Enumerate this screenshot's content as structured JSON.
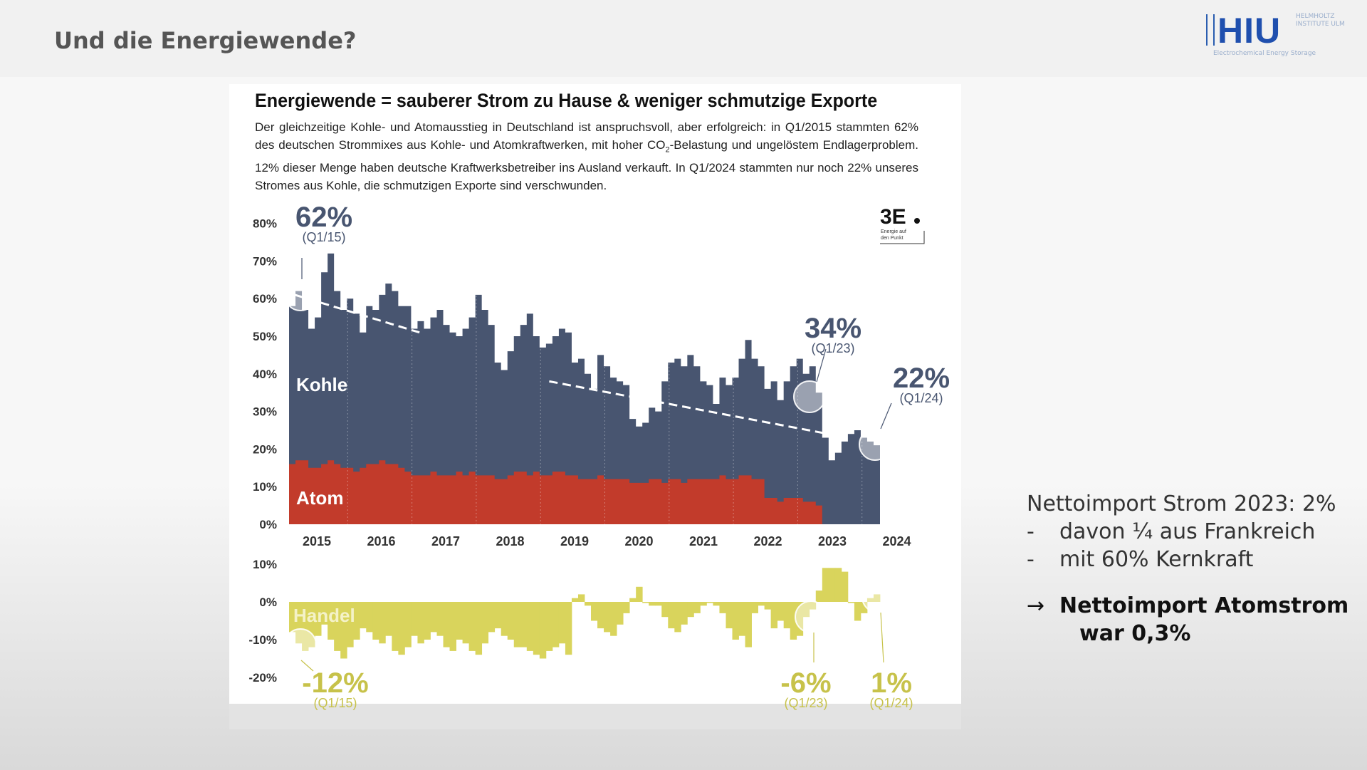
{
  "slide": {
    "title": "Und die Energiewende?",
    "logo_text": "HIU",
    "logo_side": "HELMHOLTZ INSTITUTE ULM",
    "logo_sub": "Electrochemical Energy Storage"
  },
  "figure": {
    "headline": "Energiewende = sauberer Strom zu Hause & weniger schmutzige Exporte",
    "intro_1": "Der gleichzeitige Kohle- und Atomausstieg in Deutschland ist anspruchsvoll, aber erfolgreich: in Q1/2015 stammten 62% des deutschen Strommixes aus Kohle- und Atomkraftwerken, mit hoher CO",
    "intro_sub": "2",
    "intro_2": "-Belastung und ungelöstem Endlagerproblem. 12% dieser Menge haben deutsche Kraftwerksbetreiber ins Ausland verkauft. In Q1/2024 stammten nur noch 22% unseres Stromes aus Kohle, die schmutzigen Exporte sind verschwunden.",
    "badge_text": "3E",
    "badge_sub_1": "Energie auf",
    "badge_sub_2": "den Punkt"
  },
  "colors": {
    "kohle": "#485570",
    "atom": "#c23b2b",
    "handel": "#d9d45c",
    "trend": "#ffffff"
  },
  "chart_data": [
    {
      "type": "area",
      "x_labels": [
        "2015",
        "2016",
        "2017",
        "2018",
        "2019",
        "2020",
        "2021",
        "2022",
        "2023",
        "2024"
      ],
      "y_ticks": [
        "0%",
        "10%",
        "20%",
        "30%",
        "40%",
        "50%",
        "60%",
        "70%",
        "80%"
      ],
      "ylim": [
        0,
        80
      ],
      "series": [
        {
          "name": "Kohle",
          "values": [
            58,
            62,
            57,
            52,
            55,
            67,
            72,
            62,
            57,
            60,
            56,
            51,
            58,
            57,
            61,
            64,
            62,
            58,
            58,
            52,
            54,
            52,
            55,
            57,
            53,
            51,
            50,
            52,
            55,
            61,
            57,
            53,
            43,
            41,
            46,
            50,
            53,
            56,
            50,
            47,
            48,
            50,
            52,
            51,
            43,
            44,
            40,
            36,
            45,
            42,
            39,
            38,
            37,
            28,
            26,
            27,
            31,
            30,
            38,
            43,
            44,
            42,
            45,
            42,
            38,
            37,
            32,
            39,
            37,
            39,
            44,
            49,
            44,
            42,
            36,
            38,
            33,
            38,
            42,
            44,
            40,
            42,
            35,
            23,
            17,
            19,
            22,
            24,
            25,
            23,
            22,
            21
          ]
        },
        {
          "name": "Atom",
          "values": [
            16,
            17,
            17,
            15,
            15,
            16,
            17,
            16,
            15,
            15,
            14,
            15,
            16,
            16,
            17,
            16,
            16,
            15,
            14,
            13,
            13,
            13,
            14,
            13,
            13,
            13,
            14,
            13,
            14,
            13,
            13,
            13,
            12,
            12,
            13,
            14,
            14,
            13,
            14,
            13,
            13,
            14,
            14,
            13,
            13,
            12,
            12,
            12,
            13,
            12,
            12,
            12,
            12,
            11,
            11,
            11,
            12,
            12,
            11,
            12,
            12,
            11,
            12,
            12,
            12,
            12,
            12,
            13,
            12,
            12,
            13,
            13,
            12,
            12,
            7,
            7,
            6,
            7,
            7,
            7,
            6,
            6,
            5,
            0,
            0,
            0,
            0,
            0,
            0,
            0,
            0,
            0
          ]
        }
      ],
      "annotations": [
        {
          "label": "62%",
          "sub": "(Q1/15)"
        },
        {
          "label": "34%",
          "sub": "(Q1/23)"
        },
        {
          "label": "22%",
          "sub": "(Q1/24)"
        }
      ],
      "trend_lines": [
        {
          "from": [
            0.9,
            61
          ],
          "to": [
            20.3,
            51
          ]
        },
        {
          "from": [
            40.5,
            38
          ],
          "to": [
            84,
            24
          ]
        }
      ]
    },
    {
      "type": "bar",
      "name": "Handel",
      "y_ticks": [
        "10%",
        "0%",
        "-10%",
        "-20%"
      ],
      "ylim": [
        -20,
        10
      ],
      "values": [
        -8,
        -11,
        -13,
        -12,
        -9,
        -6,
        -10,
        -13,
        -15,
        -12,
        -10,
        -7,
        -8,
        -10,
        -11,
        -9,
        -13,
        -14,
        -12,
        -9,
        -11,
        -10,
        -8,
        -9,
        -12,
        -13,
        -10,
        -11,
        -13,
        -14,
        -11,
        -8,
        -7,
        -9,
        -10,
        -12,
        -12,
        -13,
        -14,
        -15,
        -13,
        -12,
        -11,
        -14,
        1,
        2,
        -1,
        -5,
        -7,
        -8,
        -9,
        -6,
        -3,
        1,
        4,
        0,
        -1,
        -1,
        -4,
        -7,
        -8,
        -6,
        -4,
        -3,
        -1,
        0,
        -1,
        -3,
        -7,
        -10,
        -9,
        -12,
        -3,
        -1,
        -2,
        -7,
        -5,
        -7,
        -10,
        -9,
        -4,
        -2,
        3,
        9,
        9,
        9,
        8,
        0,
        -5,
        -3,
        1,
        2
      ],
      "annotations": [
        {
          "label": "-12%",
          "sub": "(Q1/15)"
        },
        {
          "label": "-6%",
          "sub": "(Q1/23)"
        },
        {
          "label": "1%",
          "sub": "(Q1/24)"
        }
      ]
    }
  ],
  "notes": {
    "line1": "Nettoimport Strom 2023: 2%",
    "dash": "-",
    "line2": "davon ¼ aus Frankreich",
    "line3": "mit 60% Kernkraft",
    "arrow": "→",
    "conclusion1": "Nettoimport Atomstrom",
    "conclusion2": "war 0,3%"
  }
}
